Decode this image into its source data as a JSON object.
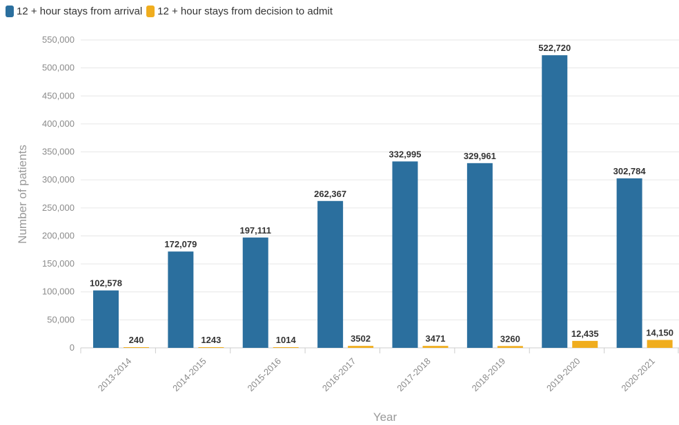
{
  "chart_data": {
    "type": "bar",
    "categories": [
      "2013-2014",
      "2014-2015",
      "2015-2016",
      "2016-2017",
      "2017-2018",
      "2018-2019",
      "2019-2020",
      "2020-2021"
    ],
    "series": [
      {
        "name": "12 + hour stays from arrival",
        "color": "#2b6f9e",
        "values": [
          102578,
          172079,
          197111,
          262367,
          332995,
          329961,
          522720,
          302784
        ],
        "labels": [
          "102,578",
          "172,079",
          "197,111",
          "262,367",
          "332,995",
          "329,961",
          "522,720",
          "302,784"
        ]
      },
      {
        "name": "12 + hour stays from decision to admit",
        "color": "#f0ad1e",
        "values": [
          240,
          1243,
          1014,
          3502,
          3471,
          3260,
          12435,
          14150
        ],
        "labels": [
          "240",
          "1243",
          "1014",
          "3502",
          "3471",
          "3260",
          "12,435",
          "14,150"
        ]
      }
    ],
    "xlabel": "Year",
    "ylabel": "Number of patients",
    "ylim": [
      0,
      550000
    ],
    "yticks": [
      0,
      50000,
      100000,
      150000,
      200000,
      250000,
      300000,
      350000,
      400000,
      450000,
      500000,
      550000
    ],
    "ytick_labels": [
      "0",
      "50,000",
      "100,000",
      "150,000",
      "200,000",
      "250,000",
      "300,000",
      "350,000",
      "400,000",
      "450,000",
      "500,000",
      "550,000"
    ],
    "grid": true,
    "legend_position": "top-left"
  }
}
